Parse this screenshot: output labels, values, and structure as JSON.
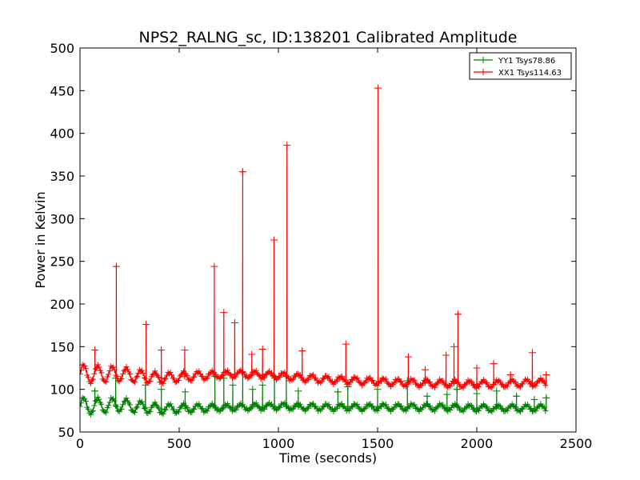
{
  "chart_data": {
    "type": "line",
    "title": "NPS2_RALNG_sc, ID:138201 Calibrated Amplitude",
    "xlabel": "Time (seconds)",
    "ylabel": "Power in Kelvin",
    "xlim": [
      0,
      2500
    ],
    "ylim": [
      50,
      500
    ],
    "xticks": [
      "0",
      "500",
      "1000",
      "1500",
      "2000",
      "2500"
    ],
    "yticks": [
      "50",
      "100",
      "150",
      "200",
      "250",
      "300",
      "350",
      "400",
      "450",
      "500"
    ],
    "grid": false,
    "legend_position": "top-right",
    "series": [
      {
        "name": "YY1 Tsys78.86",
        "color": "#008000",
        "marker": "+",
        "baseline": [
          [
            0,
            80
          ],
          [
            200,
            82
          ],
          [
            400,
            77
          ],
          [
            600,
            78
          ],
          [
            800,
            79
          ],
          [
            1000,
            80
          ],
          [
            1200,
            79
          ],
          [
            1400,
            79
          ],
          [
            1600,
            79
          ],
          [
            1800,
            79
          ],
          [
            2000,
            78
          ],
          [
            2200,
            78
          ],
          [
            2350,
            78
          ]
        ],
        "spikes": [
          [
            75,
            98
          ],
          [
            180,
            113
          ],
          [
            330,
            105
          ],
          [
            410,
            100
          ],
          [
            530,
            97
          ],
          [
            680,
            115
          ],
          [
            725,
            113
          ],
          [
            770,
            105
          ],
          [
            820,
            120
          ],
          [
            870,
            100
          ],
          [
            920,
            105
          ],
          [
            980,
            115
          ],
          [
            1040,
            115
          ],
          [
            1100,
            98
          ],
          [
            1300,
            97
          ],
          [
            1350,
            103
          ],
          [
            1500,
            100
          ],
          [
            1650,
            110
          ],
          [
            1750,
            92
          ],
          [
            1850,
            94
          ],
          [
            1900,
            100
          ],
          [
            2000,
            95
          ],
          [
            2100,
            98
          ],
          [
            2200,
            92
          ],
          [
            2290,
            88
          ],
          [
            2350,
            90
          ]
        ]
      },
      {
        "name": "XX1 Tsys114.63",
        "color": "#ff0000",
        "marker": "+",
        "baseline": [
          [
            0,
            118
          ],
          [
            200,
            118
          ],
          [
            400,
            113
          ],
          [
            600,
            116
          ],
          [
            800,
            118
          ],
          [
            1000,
            116
          ],
          [
            1200,
            112
          ],
          [
            1400,
            110
          ],
          [
            1600,
            108
          ],
          [
            1800,
            107
          ],
          [
            2000,
            106
          ],
          [
            2200,
            107
          ],
          [
            2350,
            108
          ]
        ],
        "spikes": [
          [
            75,
            146
          ],
          [
            183,
            244
          ],
          [
            333,
            176
          ],
          [
            410,
            146
          ],
          [
            528,
            146
          ],
          [
            677,
            244
          ],
          [
            725,
            190
          ],
          [
            780,
            178
          ],
          [
            820,
            355
          ],
          [
            866,
            141
          ],
          [
            920,
            147
          ],
          [
            978,
            275
          ],
          [
            1043,
            386
          ],
          [
            1120,
            145
          ],
          [
            1340,
            153
          ],
          [
            1502,
            453
          ],
          [
            1655,
            138
          ],
          [
            1740,
            123
          ],
          [
            1845,
            140
          ],
          [
            1885,
            150
          ],
          [
            1905,
            188
          ],
          [
            2000,
            125
          ],
          [
            2085,
            130
          ],
          [
            2170,
            117
          ],
          [
            2280,
            143
          ],
          [
            2350,
            117
          ]
        ]
      }
    ]
  }
}
